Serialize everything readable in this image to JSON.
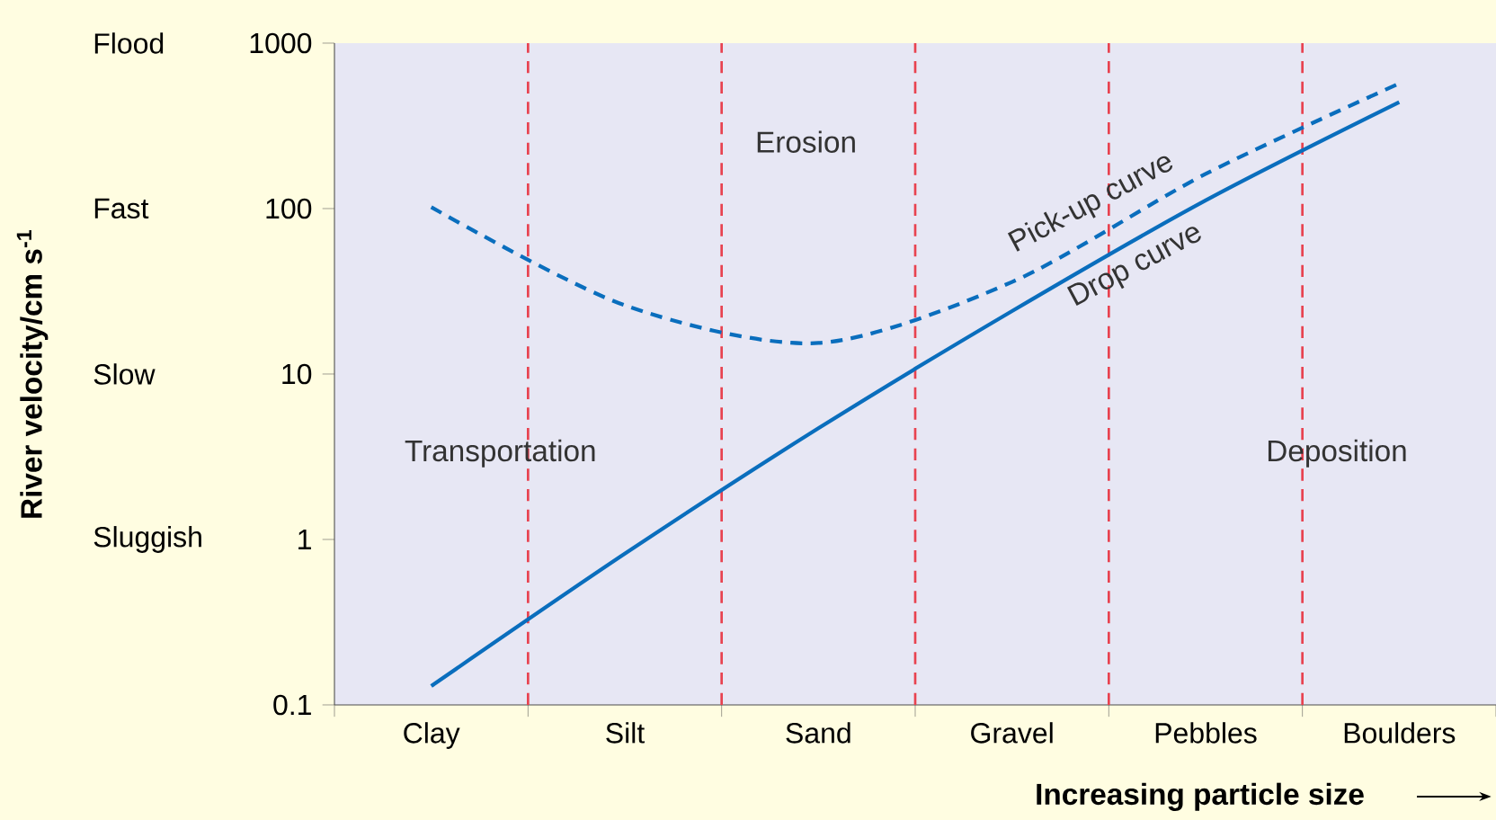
{
  "chart_data": {
    "type": "line",
    "xlabel": "Increasing particle size",
    "ylabel": "**River velocity/cm s$^{-1}$**",
    "categories": [
      "Clay",
      "Silt",
      "Sand",
      "Gravel",
      "Pebbles",
      "Boulders"
    ],
    "ylim": [
      0.1,
      1000
    ],
    "yticks": [
      0.1,
      1,
      10,
      100,
      1000
    ],
    "log": "y",
    "grid": false,
    "legend": false,
    "series": [
      {
        "name": "Pick-up curve",
        "color": "#0a6ebd",
        "line_style": "dashed",
        "values": [
          102,
          26,
          15.4,
          36,
          162,
          570
        ]
      },
      {
        "name": "Drop curve",
        "color": "#0a6ebd",
        "line_style": "solid",
        "values": [
          0.13,
          0.82,
          4.7,
          24,
          112,
          440
        ]
      }
    ],
    "annotations": [
      "Erosion",
      "Transportation",
      "Deposition",
      "Sluggish",
      "Slow",
      "Fast",
      "Flood"
    ]
  }
}
